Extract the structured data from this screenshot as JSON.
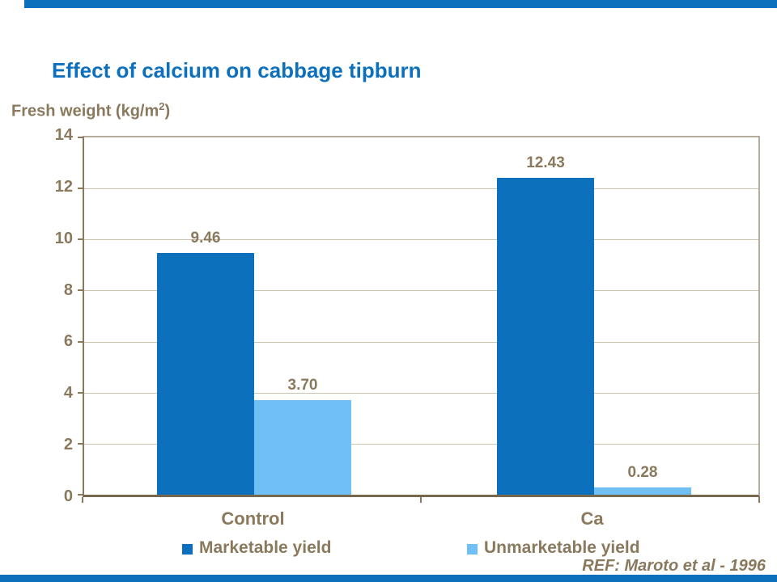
{
  "slide": {
    "title": "Effect of calcium on cabbage tipburn",
    "reference": "REF: Maroto et al - 1996",
    "accent_color": "#0C70BC",
    "text_color": "#8A795C"
  },
  "axis": {
    "ylabel_prefix": "Fresh weight (kg/m",
    "ylabel_sup": "2",
    "ylabel_suffix": ")"
  },
  "chart_data": {
    "type": "bar",
    "title": "Effect of calcium on cabbage tipburn",
    "ylabel": "Fresh weight (kg/m2)",
    "xlabel": "",
    "categories": [
      "Control",
      "Ca"
    ],
    "series": [
      {
        "name": "Marketable yield",
        "color": "#0C70BC",
        "values": [
          9.46,
          12.43
        ],
        "value_labels": [
          "9.46",
          "12.43"
        ]
      },
      {
        "name": "Unmarketable yield",
        "color": "#70BFF5",
        "values": [
          3.7,
          0.28
        ],
        "value_labels": [
          "3.70",
          "0.28"
        ]
      }
    ],
    "ylim": [
      0,
      14
    ],
    "yticks": [
      14,
      12,
      10,
      8,
      6,
      4,
      2,
      0
    ],
    "grid": true,
    "legend_position": "bottom",
    "reference": "REF: Maroto et al - 1996"
  }
}
